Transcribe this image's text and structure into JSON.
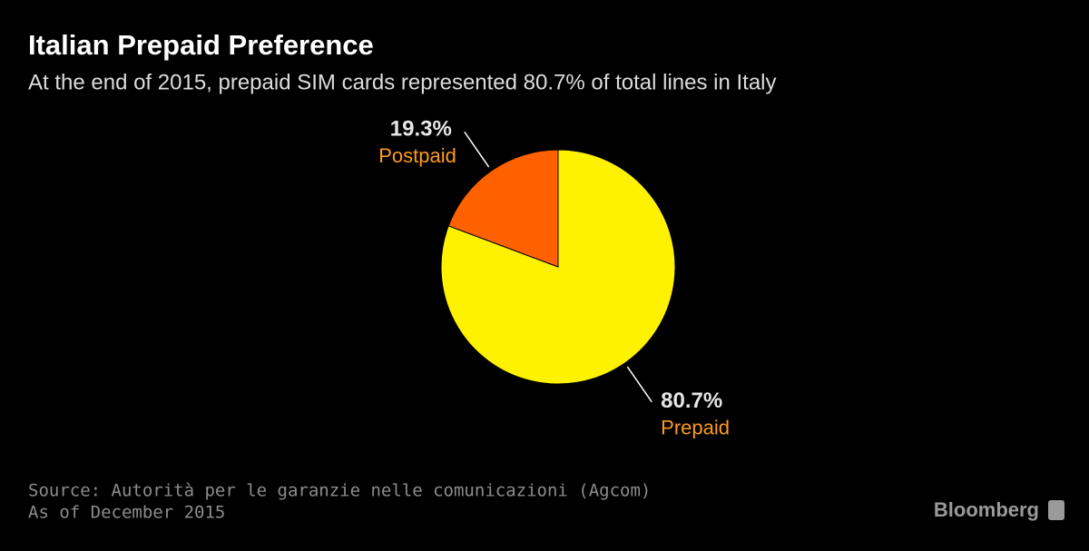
{
  "chart_data": {
    "type": "pie",
    "title": "Italian Prepaid Preference",
    "subtitle": "At the end of 2015, prepaid SIM cards represented 80.7% of total lines in Italy",
    "categories": [
      "Prepaid",
      "Postpaid"
    ],
    "values": [
      80.7,
      19.3
    ],
    "value_labels": [
      "80.7%",
      "19.3%"
    ],
    "colors": [
      "#fff200",
      "#ff6000"
    ],
    "source": "Source: Autorità per le garanzie nelle comunicazioni (Agcom)",
    "note": "As of December 2015",
    "brand": "Bloomberg"
  }
}
